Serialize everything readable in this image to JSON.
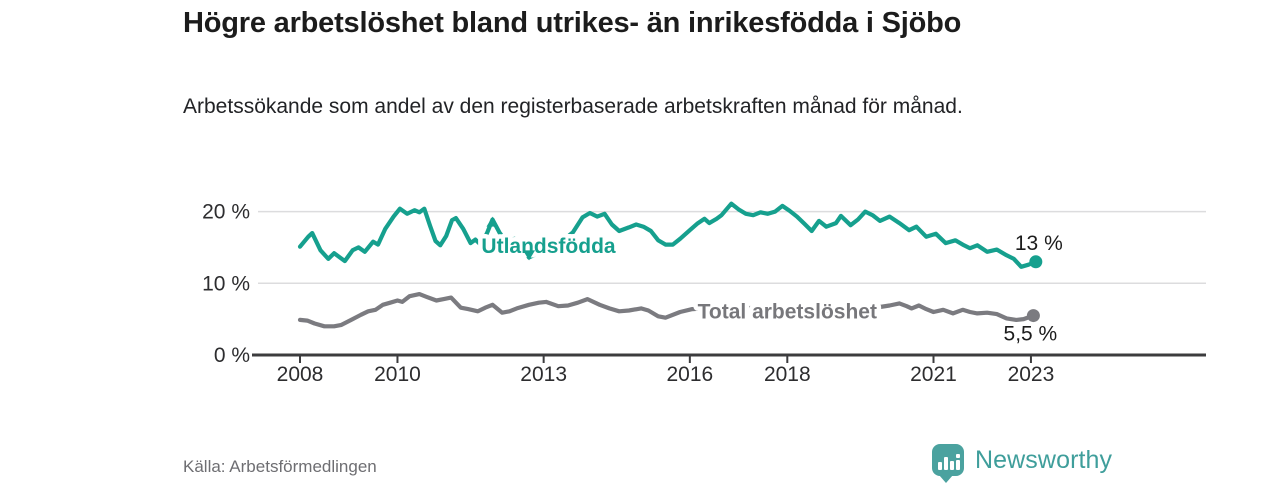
{
  "header": {
    "title": "Högre arbetslöshet bland utrikes- än inrikesfödda i Sjöbo",
    "subtitle": "Arbetssökande som andel av den registerbaserade arbetskraften månad för månad."
  },
  "footer": {
    "source": "Källa: Arbetsförmedlingen",
    "brand": "Newsworthy"
  },
  "colors": {
    "foreign_born_line": "#16a08e",
    "total_line": "#7b7b80",
    "gridline": "#dcdcde",
    "axis": "#3c3c3e",
    "axis_text": "#2d2d2f",
    "annotation_text": "#1c1c1c",
    "total_label_text": "#77777b",
    "brand_teal": "#4ba29f"
  },
  "chart_data": {
    "type": "line",
    "title": "Högre arbetslöshet bland utrikes- än inrikesfödda i Sjöbo",
    "xlabel": "",
    "ylabel": "Arbetssökande som andel av den registerbaserade arbetskraften",
    "grid": "horizontal",
    "legend_position": "inline-labels",
    "x_range": [
      2008.0,
      2023.1
    ],
    "ylim": [
      0,
      22.5
    ],
    "x_axis": {
      "ticks": [
        2008,
        2010,
        2013,
        2016,
        2018,
        2021,
        2023
      ],
      "labels": [
        "2008",
        "2010",
        "2013",
        "2016",
        "2018",
        "2021",
        "2023"
      ]
    },
    "y_axis": {
      "tick_values": [
        0,
        10,
        20
      ],
      "labels": [
        "0 %",
        "10 %",
        "20 %"
      ],
      "gridline_values": [
        10,
        20
      ]
    },
    "series": [
      {
        "name": "Utlandsfödda",
        "color": "#16a08e",
        "end_label": "13 %",
        "end_value": 13.0,
        "inline_label": {
          "text": "Utlandsfödda",
          "year": 2013.1,
          "value": 15.2
        },
        "markers": [
          {
            "shape": "up",
            "year": 2011.95,
            "value": 18.6
          },
          {
            "shape": "down",
            "year": 2012.7,
            "value": 13.9
          }
        ],
        "points": [
          [
            2008.0,
            15.1
          ],
          [
            2008.17,
            16.5
          ],
          [
            2008.25,
            17.0
          ],
          [
            2008.42,
            14.6
          ],
          [
            2008.58,
            13.4
          ],
          [
            2008.7,
            14.2
          ],
          [
            2008.92,
            13.1
          ],
          [
            2009.08,
            14.6
          ],
          [
            2009.2,
            15.0
          ],
          [
            2009.33,
            14.4
          ],
          [
            2009.5,
            15.8
          ],
          [
            2009.6,
            15.4
          ],
          [
            2009.75,
            17.6
          ],
          [
            2009.92,
            19.3
          ],
          [
            2010.05,
            20.4
          ],
          [
            2010.2,
            19.7
          ],
          [
            2010.35,
            20.2
          ],
          [
            2010.45,
            19.9
          ],
          [
            2010.55,
            20.4
          ],
          [
            2010.67,
            18.0
          ],
          [
            2010.78,
            15.9
          ],
          [
            2010.88,
            15.3
          ],
          [
            2011.0,
            16.6
          ],
          [
            2011.12,
            18.8
          ],
          [
            2011.2,
            19.1
          ],
          [
            2011.35,
            17.6
          ],
          [
            2011.5,
            15.6
          ],
          [
            2011.6,
            16.1
          ],
          [
            2011.72,
            15.3
          ],
          [
            2011.85,
            17.2
          ],
          [
            2011.95,
            18.9
          ],
          [
            2012.1,
            17.0
          ],
          [
            2012.25,
            15.8
          ],
          [
            2012.4,
            16.2
          ],
          [
            2012.55,
            15.0
          ],
          [
            2012.7,
            13.6
          ],
          [
            2012.85,
            14.1
          ],
          [
            2013.0,
            14.4
          ],
          [
            2013.2,
            15.3
          ],
          [
            2013.4,
            16.0
          ],
          [
            2013.6,
            17.1
          ],
          [
            2013.8,
            19.2
          ],
          [
            2013.95,
            19.8
          ],
          [
            2014.1,
            19.3
          ],
          [
            2014.25,
            19.7
          ],
          [
            2014.4,
            18.2
          ],
          [
            2014.55,
            17.3
          ],
          [
            2014.75,
            17.8
          ],
          [
            2014.9,
            18.2
          ],
          [
            2015.05,
            17.9
          ],
          [
            2015.2,
            17.3
          ],
          [
            2015.35,
            16.0
          ],
          [
            2015.5,
            15.4
          ],
          [
            2015.65,
            15.4
          ],
          [
            2015.8,
            16.2
          ],
          [
            2016.0,
            17.4
          ],
          [
            2016.15,
            18.3
          ],
          [
            2016.3,
            19.0
          ],
          [
            2016.4,
            18.4
          ],
          [
            2016.55,
            19.0
          ],
          [
            2016.65,
            19.5
          ],
          [
            2016.85,
            21.1
          ],
          [
            2017.0,
            20.3
          ],
          [
            2017.15,
            19.7
          ],
          [
            2017.3,
            19.5
          ],
          [
            2017.45,
            19.9
          ],
          [
            2017.6,
            19.7
          ],
          [
            2017.75,
            20.0
          ],
          [
            2017.9,
            20.8
          ],
          [
            2018.05,
            20.1
          ],
          [
            2018.2,
            19.3
          ],
          [
            2018.35,
            18.3
          ],
          [
            2018.5,
            17.3
          ],
          [
            2018.65,
            18.7
          ],
          [
            2018.8,
            17.9
          ],
          [
            2019.0,
            18.4
          ],
          [
            2019.1,
            19.4
          ],
          [
            2019.3,
            18.1
          ],
          [
            2019.45,
            18.9
          ],
          [
            2019.6,
            20.0
          ],
          [
            2019.75,
            19.5
          ],
          [
            2019.9,
            18.7
          ],
          [
            2020.1,
            19.3
          ],
          [
            2020.3,
            18.4
          ],
          [
            2020.5,
            17.4
          ],
          [
            2020.65,
            17.9
          ],
          [
            2020.85,
            16.5
          ],
          [
            2021.05,
            16.9
          ],
          [
            2021.25,
            15.6
          ],
          [
            2021.45,
            16.0
          ],
          [
            2021.6,
            15.4
          ],
          [
            2021.75,
            14.9
          ],
          [
            2021.9,
            15.3
          ],
          [
            2022.1,
            14.4
          ],
          [
            2022.3,
            14.7
          ],
          [
            2022.5,
            13.9
          ],
          [
            2022.65,
            13.4
          ],
          [
            2022.8,
            12.3
          ],
          [
            2022.95,
            12.6
          ],
          [
            2023.1,
            13.0
          ]
        ]
      },
      {
        "name": "Total arbetslöshet",
        "color": "#7b7b80",
        "end_label": "5,5 %",
        "end_value": 5.5,
        "inline_label": {
          "text": "Total arbetslöshet",
          "year": 2018.0,
          "value": 6.1
        },
        "markers": [],
        "points": [
          [
            2008.0,
            4.9
          ],
          [
            2008.15,
            4.8
          ],
          [
            2008.3,
            4.4
          ],
          [
            2008.5,
            4.0
          ],
          [
            2008.7,
            4.0
          ],
          [
            2008.85,
            4.2
          ],
          [
            2009.05,
            4.9
          ],
          [
            2009.25,
            5.6
          ],
          [
            2009.4,
            6.1
          ],
          [
            2009.55,
            6.3
          ],
          [
            2009.7,
            7.0
          ],
          [
            2009.85,
            7.3
          ],
          [
            2010.0,
            7.6
          ],
          [
            2010.1,
            7.4
          ],
          [
            2010.25,
            8.2
          ],
          [
            2010.45,
            8.5
          ],
          [
            2010.6,
            8.1
          ],
          [
            2010.8,
            7.6
          ],
          [
            2010.95,
            7.8
          ],
          [
            2011.1,
            8.0
          ],
          [
            2011.3,
            6.6
          ],
          [
            2011.45,
            6.4
          ],
          [
            2011.65,
            6.1
          ],
          [
            2011.8,
            6.6
          ],
          [
            2011.95,
            7.0
          ],
          [
            2012.15,
            5.9
          ],
          [
            2012.3,
            6.1
          ],
          [
            2012.45,
            6.5
          ],
          [
            2012.7,
            7.0
          ],
          [
            2012.9,
            7.3
          ],
          [
            2013.05,
            7.4
          ],
          [
            2013.3,
            6.8
          ],
          [
            2013.5,
            6.9
          ],
          [
            2013.7,
            7.3
          ],
          [
            2013.9,
            7.8
          ],
          [
            2014.15,
            7.0
          ],
          [
            2014.35,
            6.5
          ],
          [
            2014.55,
            6.1
          ],
          [
            2014.75,
            6.2
          ],
          [
            2015.0,
            6.5
          ],
          [
            2015.15,
            6.2
          ],
          [
            2015.35,
            5.4
          ],
          [
            2015.5,
            5.2
          ],
          [
            2015.8,
            6.0
          ],
          [
            2016.05,
            6.4
          ],
          [
            2016.3,
            6.5
          ],
          [
            2016.6,
            6.4
          ],
          [
            2017.0,
            6.6
          ],
          [
            2017.5,
            6.5
          ],
          [
            2018.0,
            6.3
          ],
          [
            2018.5,
            6.2
          ],
          [
            2019.0,
            6.3
          ],
          [
            2019.5,
            6.5
          ],
          [
            2019.9,
            6.7
          ],
          [
            2020.1,
            6.9
          ],
          [
            2020.3,
            7.2
          ],
          [
            2020.45,
            6.8
          ],
          [
            2020.55,
            6.5
          ],
          [
            2020.7,
            6.9
          ],
          [
            2020.85,
            6.4
          ],
          [
            2021.0,
            6.0
          ],
          [
            2021.2,
            6.3
          ],
          [
            2021.4,
            5.8
          ],
          [
            2021.6,
            6.3
          ],
          [
            2021.75,
            6.0
          ],
          [
            2021.9,
            5.8
          ],
          [
            2022.1,
            5.9
          ],
          [
            2022.3,
            5.7
          ],
          [
            2022.5,
            5.1
          ],
          [
            2022.7,
            4.9
          ],
          [
            2022.85,
            5.0
          ],
          [
            2023.05,
            5.5
          ]
        ]
      }
    ]
  }
}
